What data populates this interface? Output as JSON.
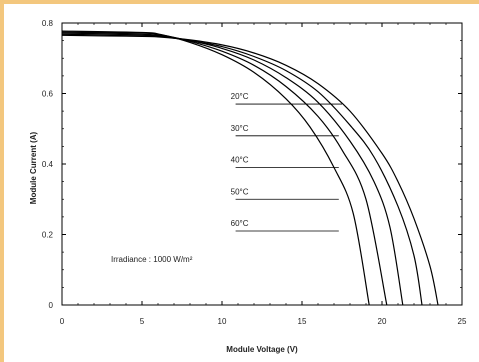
{
  "theme": {
    "frame_color": "#f3c77e",
    "line_color": "#000000"
  },
  "chart_data": {
    "type": "line",
    "title": "",
    "xlabel": "Module Voltage (V)",
    "ylabel": "Module Current (A)",
    "xlim": [
      0,
      25
    ],
    "ylim": [
      0,
      0.8
    ],
    "x_ticks": [
      "0",
      "5",
      "10",
      "15",
      "20",
      "25"
    ],
    "y_ticks": [
      "0",
      "0.2",
      "0.4",
      "0.6",
      "0.8"
    ],
    "grid": false,
    "annotation": "Irradiance : 1000 W/m²",
    "series": [
      {
        "name": "20°C",
        "x": [
          0,
          5,
          6.2,
          8,
          10,
          12,
          14,
          16,
          18,
          20,
          21,
          22,
          23,
          23.5
        ],
        "y": [
          0.765,
          0.762,
          0.76,
          0.752,
          0.738,
          0.715,
          0.68,
          0.628,
          0.55,
          0.43,
          0.35,
          0.245,
          0.11,
          0
        ]
      },
      {
        "name": "30°C",
        "x": [
          0,
          5,
          6.2,
          8,
          10,
          12,
          14,
          16,
          18,
          19.5,
          21,
          22,
          22.5
        ],
        "y": [
          0.768,
          0.765,
          0.762,
          0.75,
          0.733,
          0.705,
          0.665,
          0.605,
          0.51,
          0.42,
          0.28,
          0.14,
          0
        ]
      },
      {
        "name": "40°C",
        "x": [
          0,
          5,
          6.2,
          8,
          10,
          12,
          14,
          16,
          18,
          19.5,
          20.5,
          21.3
        ],
        "y": [
          0.771,
          0.768,
          0.764,
          0.75,
          0.728,
          0.695,
          0.645,
          0.575,
          0.465,
          0.35,
          0.22,
          0
        ]
      },
      {
        "name": "50°C",
        "x": [
          0,
          5,
          6.2,
          8,
          10,
          12,
          14,
          16,
          17.5,
          19,
          20.3
        ],
        "y": [
          0.774,
          0.771,
          0.766,
          0.748,
          0.72,
          0.68,
          0.62,
          0.535,
          0.44,
          0.3,
          0
        ]
      },
      {
        "name": "60°C",
        "x": [
          0,
          5,
          6.2,
          8,
          10,
          12,
          14,
          15.5,
          17,
          18.2,
          19.2
        ],
        "y": [
          0.777,
          0.773,
          0.767,
          0.745,
          0.71,
          0.66,
          0.585,
          0.505,
          0.39,
          0.26,
          0
        ]
      }
    ],
    "label_points": [
      {
        "x": 17.5,
        "y": 0.57,
        "label_x": 11.1
      },
      {
        "x": 17.3,
        "y": 0.48,
        "label_x": 11.1
      },
      {
        "x": 17.3,
        "y": 0.39,
        "label_x": 11.1
      },
      {
        "x": 17.3,
        "y": 0.3,
        "label_x": 11.1
      },
      {
        "x": 17.3,
        "y": 0.21,
        "label_x": 11.1
      }
    ]
  }
}
